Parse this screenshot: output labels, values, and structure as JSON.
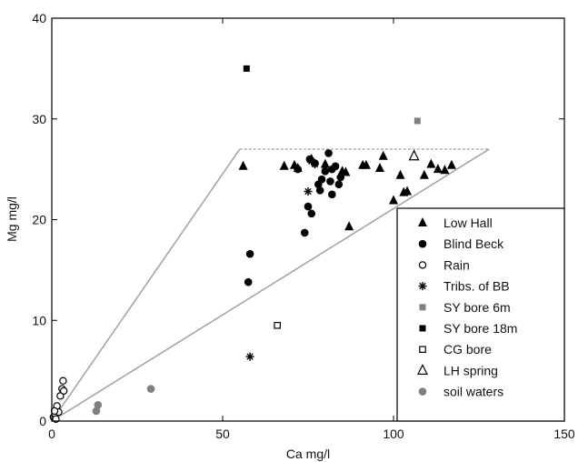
{
  "chart_data": {
    "type": "scatter",
    "xlabel": "Ca  mg/l",
    "ylabel": "Mg  mg/l",
    "xlim": [
      0,
      150
    ],
    "ylim": [
      0,
      40
    ],
    "xticks": [
      "0",
      "50",
      "100",
      "150"
    ],
    "yticks": [
      "0",
      "10",
      "20",
      "30",
      "40"
    ],
    "grid": false,
    "legend_position": "bottom-right",
    "series": [
      {
        "name": "Low Hall",
        "marker": "triangle-filled",
        "color": "#000000",
        "x": [
          56,
          68,
          71,
          72,
          76,
          80,
          85,
          86,
          87,
          91,
          92,
          96,
          97,
          100,
          102,
          103,
          104,
          109,
          111,
          113,
          115,
          117
        ],
        "y": [
          25.3,
          25.3,
          25.4,
          25.1,
          26.0,
          25.5,
          24.8,
          24.7,
          19.3,
          25.4,
          25.4,
          25.1,
          26.3,
          21.9,
          24.4,
          22.7,
          22.8,
          24.4,
          25.5,
          25.0,
          24.9,
          25.4
        ]
      },
      {
        "name": "Blind Beck",
        "marker": "circle-filled",
        "color": "#000000",
        "x": [
          57.5,
          58,
          72,
          74,
          75,
          75.5,
          76,
          77,
          78,
          78.5,
          79,
          80,
          81,
          81.5,
          82,
          82,
          83,
          84,
          84.5
        ],
        "y": [
          13.8,
          16.6,
          25.0,
          18.7,
          21.3,
          26.0,
          20.6,
          25.6,
          23.5,
          22.9,
          24.0,
          24.8,
          26.6,
          23.8,
          22.5,
          25.0,
          25.3,
          23.5,
          24.2
        ]
      },
      {
        "name": "Rain",
        "marker": "circle-open",
        "color": "#000000",
        "x": [
          0.5,
          1.0,
          1.5,
          2.0,
          2.5,
          3.0,
          3.3,
          3.5,
          1.2,
          0.8
        ],
        "y": [
          0.4,
          0.7,
          1.5,
          0.9,
          2.5,
          3.2,
          4.0,
          3.0,
          0.2,
          1.0
        ]
      },
      {
        "name": "Tribs. of BB",
        "marker": "asterisk",
        "color": "#000000",
        "x": [
          58,
          75,
          76,
          77
        ],
        "y": [
          6.4,
          22.8,
          25.8,
          25.5
        ]
      },
      {
        "name": "SY bore 6m",
        "marker": "square-filled",
        "color": "#808080",
        "x": [
          107
        ],
        "y": [
          29.8
        ]
      },
      {
        "name": "SY bore 18m",
        "marker": "square-filled",
        "color": "#000000",
        "x": [
          57
        ],
        "y": [
          35.0
        ]
      },
      {
        "name": "CG bore",
        "marker": "square-open",
        "color": "#000000",
        "x": [
          66
        ],
        "y": [
          9.5
        ]
      },
      {
        "name": "LH spring",
        "marker": "triangle-open",
        "color": "#000000",
        "x": [
          106
        ],
        "y": [
          26.3
        ]
      },
      {
        "name": "soil waters",
        "marker": "circle-filled",
        "color": "#808080",
        "x": [
          13,
          13.5,
          29
        ],
        "y": [
          1.0,
          1.6,
          3.2
        ]
      }
    ],
    "envelope": {
      "color": "#a0a0a0",
      "solid_lines": [
        {
          "from": [
            0,
            0
          ],
          "to": [
            55,
            27
          ]
        },
        {
          "from": [
            0,
            0
          ],
          "to": [
            128,
            27
          ]
        }
      ],
      "dashed_lines": [
        {
          "from": [
            55,
            27
          ],
          "to": [
            128,
            27
          ]
        }
      ]
    }
  }
}
